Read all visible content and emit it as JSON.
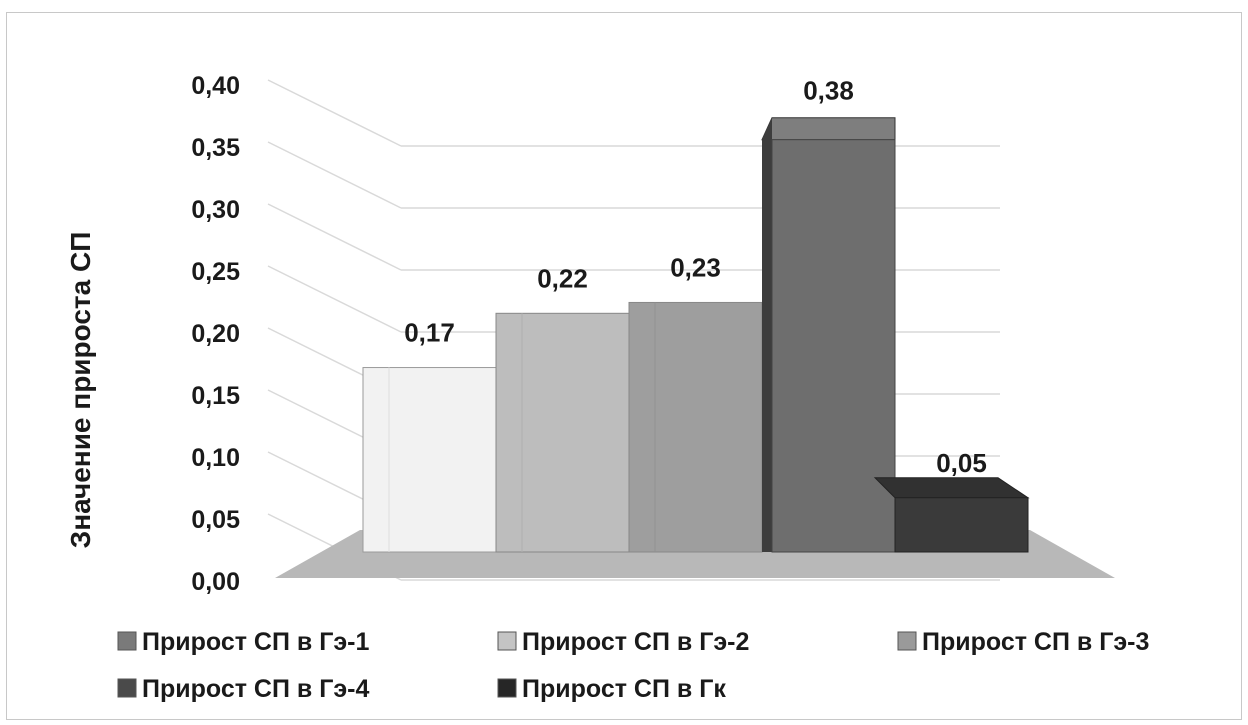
{
  "chart_data": {
    "type": "bar",
    "ylabel": "Значение прироста СП",
    "ylim": [
      0,
      0.4
    ],
    "yticks": [
      "0,00",
      "0,05",
      "0,10",
      "0,15",
      "0,20",
      "0,25",
      "0,30",
      "0,35",
      "0,40"
    ],
    "grid": true,
    "legend_position": "bottom",
    "series": [
      {
        "name": "Прирост СП в Гэ-1",
        "value": 0.17,
        "label": "0,17",
        "color": "#f2f2f2"
      },
      {
        "name": "Прирост СП в Гэ-2",
        "value": 0.22,
        "label": "0,22",
        "color": "#bdbdbd"
      },
      {
        "name": "Прирост СП в Гэ-3",
        "value": 0.23,
        "label": "0,23",
        "color": "#9e9e9e"
      },
      {
        "name": "Прирост СП в Гэ-4",
        "value": 0.38,
        "label": "0,38",
        "color": "#6e6e6e"
      },
      {
        "name": "Прирост СП в Гк",
        "value": 0.05,
        "label": "0,05",
        "color": "#3a3a3a"
      }
    ],
    "legend_colors": [
      "#7a7a7a",
      "#c4c4c4",
      "#9a9a9a",
      "#4a4a4a",
      "#262626"
    ]
  }
}
